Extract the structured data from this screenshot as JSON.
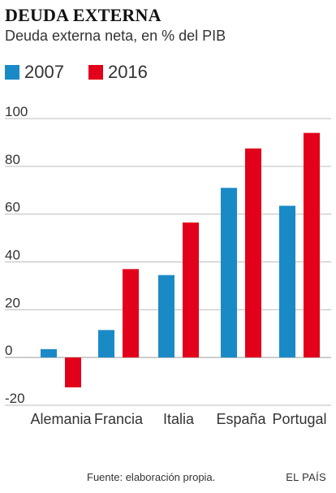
{
  "header": {
    "title": "DEUDA EXTERNA",
    "subtitle": "Deuda externa neta, en % del PIB"
  },
  "footer": {
    "source": "Fuente: elaboración propia.",
    "brand": "EL PAÍS"
  },
  "colors": {
    "series_2007": "#1a8ac6",
    "series_2016": "#e2001a",
    "grid": "#bdbdbd",
    "zero_line": "#9e9e9e"
  },
  "chart_data": {
    "type": "bar",
    "title": "DEUDA EXTERNA",
    "subtitle": "Deuda externa neta, en % del PIB",
    "categories": [
      "Alemania",
      "Francia",
      "Italia",
      "España",
      "Portugal"
    ],
    "series": [
      {
        "name": "2007",
        "values": [
          3.5,
          11.5,
          34.5,
          71,
          63.5
        ]
      },
      {
        "name": "2016",
        "values": [
          -12.5,
          37,
          56.5,
          87.5,
          94
        ]
      }
    ],
    "ylim": [
      -20,
      100
    ],
    "yticks": [
      100,
      80,
      60,
      40,
      20,
      0,
      -20
    ],
    "ytick_labels": [
      "100",
      "80",
      "60",
      "40",
      "20",
      "0",
      "-20"
    ],
    "grid": true,
    "legend_position": "top-left"
  }
}
